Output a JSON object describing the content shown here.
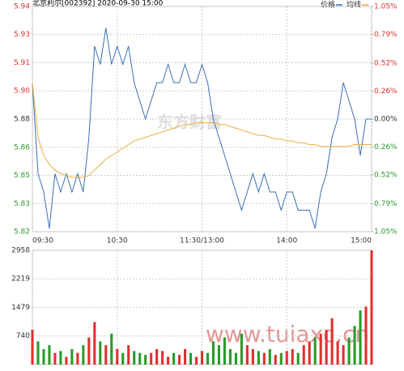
{
  "chart_data": {
    "type": "intraday",
    "title": "北京利尔[002392] 2020-09-30 15:00",
    "watermarks": [
      "东方财富",
      "www.tuiaxc.cn"
    ],
    "xlim": [
      0,
      240
    ],
    "xticks": [
      {
        "value": 0,
        "label": "09:30"
      },
      {
        "value": 60,
        "label": "10:30"
      },
      {
        "value": 120,
        "label": "11:30/13:00"
      },
      {
        "value": 180,
        "label": "14:00"
      },
      {
        "value": 240,
        "label": "15:00"
      }
    ],
    "ylim": [
      5.8182,
      5.9418
    ],
    "yticks": [
      {
        "value": 5.9418,
        "label": "5.94"
      },
      {
        "value": 5.9264,
        "label": "5.93"
      },
      {
        "value": 5.9109,
        "label": "5.91"
      },
      {
        "value": 5.8955,
        "label": "5.90"
      },
      {
        "value": 5.88,
        "label": "5.88"
      },
      {
        "value": 5.8645,
        "label": "5.86"
      },
      {
        "value": 5.8491,
        "label": "5.85"
      },
      {
        "value": 5.8336,
        "label": "5.83"
      },
      {
        "value": 5.8182,
        "label": "5.82"
      }
    ],
    "y2lim": [
      -1.05,
      1.05
    ],
    "y2ticks": [
      {
        "value": 1.05,
        "label": "1.05%"
      },
      {
        "value": 0.79,
        "label": "0.79%"
      },
      {
        "value": 0.52,
        "label": "0.52%"
      },
      {
        "value": 0.26,
        "label": "0.26%"
      },
      {
        "value": 0,
        "label": "0.00%"
      },
      {
        "value": -0.26,
        "label": "0.26%"
      },
      {
        "value": -0.52,
        "label": "0.52%"
      },
      {
        "value": -0.79,
        "label": "0.79%"
      },
      {
        "value": -1.05,
        "label": "1.05%"
      }
    ],
    "up_color": "#e03030",
    "down_color": "#2a9a2a",
    "x": [
      0,
      4,
      8,
      12,
      16,
      20,
      24,
      28,
      32,
      36,
      40,
      44,
      48,
      52,
      56,
      60,
      64,
      68,
      72,
      76,
      80,
      84,
      88,
      92,
      96,
      100,
      104,
      108,
      112,
      116,
      120,
      124,
      128,
      132,
      136,
      140,
      144,
      148,
      152,
      156,
      160,
      164,
      168,
      172,
      176,
      180,
      184,
      188,
      192,
      196,
      200,
      204,
      208,
      212,
      216,
      220,
      224,
      228,
      232,
      236,
      240
    ],
    "series": [
      {
        "name": "价格",
        "color": "#3a6fb0",
        "values": [
          5.9,
          5.85,
          5.84,
          5.82,
          5.85,
          5.84,
          5.85,
          5.84,
          5.85,
          5.84,
          5.87,
          5.92,
          5.91,
          5.93,
          5.91,
          5.92,
          5.91,
          5.92,
          5.9,
          5.89,
          5.88,
          5.89,
          5.9,
          5.9,
          5.91,
          5.9,
          5.9,
          5.91,
          5.9,
          5.9,
          5.91,
          5.9,
          5.88,
          5.87,
          5.86,
          5.85,
          5.84,
          5.83,
          5.84,
          5.85,
          5.84,
          5.85,
          5.84,
          5.84,
          5.83,
          5.84,
          5.84,
          5.83,
          5.83,
          5.83,
          5.82,
          5.84,
          5.85,
          5.87,
          5.88,
          5.9,
          5.89,
          5.88,
          5.86,
          5.88,
          5.88
        ]
      },
      {
        "name": "均线",
        "color": "#e8b040",
        "values": [
          5.9,
          5.87,
          5.86,
          5.855,
          5.852,
          5.85,
          5.849,
          5.848,
          5.848,
          5.848,
          5.849,
          5.852,
          5.855,
          5.858,
          5.86,
          5.862,
          5.864,
          5.866,
          5.868,
          5.869,
          5.87,
          5.871,
          5.872,
          5.873,
          5.874,
          5.875,
          5.876,
          5.877,
          5.877,
          5.878,
          5.878,
          5.878,
          5.878,
          5.877,
          5.877,
          5.876,
          5.875,
          5.874,
          5.873,
          5.872,
          5.871,
          5.871,
          5.87,
          5.869,
          5.869,
          5.868,
          5.868,
          5.867,
          5.867,
          5.866,
          5.866,
          5.865,
          5.865,
          5.865,
          5.865,
          5.865,
          5.865,
          5.866,
          5.866,
          5.866,
          5.866
        ]
      }
    ],
    "volume": {
      "ylim": [
        0,
        2958
      ],
      "yticks": [
        2958,
        2219,
        1479,
        740
      ],
      "values": [
        900,
        600,
        400,
        500,
        300,
        350,
        200,
        400,
        300,
        500,
        700,
        1100,
        600,
        500,
        800,
        400,
        300,
        500,
        350,
        300,
        250,
        300,
        400,
        350,
        200,
        300,
        250,
        400,
        300,
        200,
        350,
        300,
        600,
        500,
        700,
        400,
        300,
        800,
        500,
        400,
        350,
        300,
        400,
        250,
        300,
        350,
        400,
        300,
        500,
        600,
        700,
        800,
        900,
        1200,
        600,
        500,
        700,
        1000,
        1400,
        1500,
        2958
      ]
    }
  }
}
